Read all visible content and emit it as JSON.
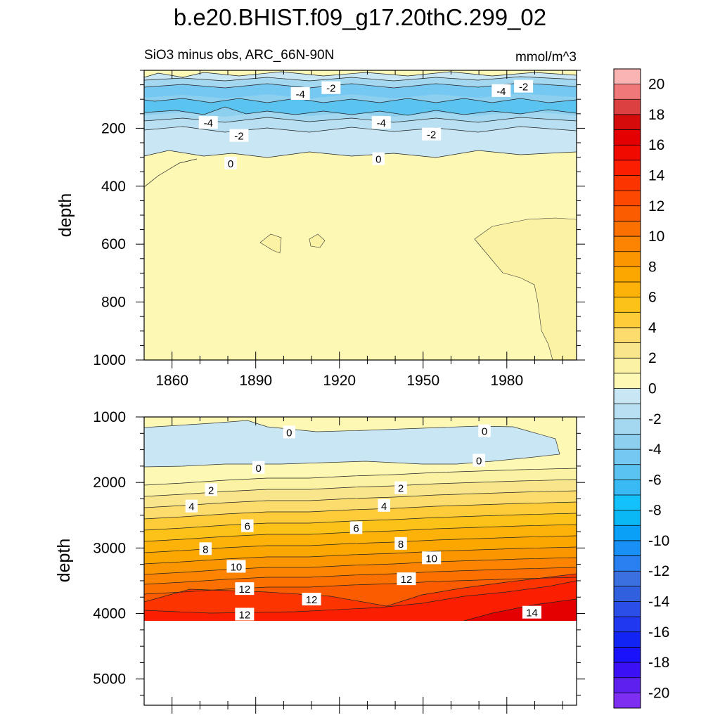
{
  "title": "b.e20.BHIST.f09_g17.20thC.299_02",
  "subtitle_left": "SiO3 minus obs, ARC_66N-90N",
  "subtitle_right": "mmol/m^3",
  "chart_data": [
    {
      "type": "contour",
      "panel": "upper",
      "ylabel": "depth",
      "xlim": [
        1850,
        2005
      ],
      "ylim": [
        1000,
        0
      ],
      "x_ticks": [
        1860,
        1890,
        1920,
        1950,
        1980
      ],
      "x_tick_labels": [
        "1860",
        "1890",
        "1920",
        "1950",
        "1980"
      ],
      "y_ticks": [
        200,
        400,
        600,
        800,
        1000
      ],
      "y_tick_labels": [
        "200",
        "400",
        "600",
        "800",
        "1000"
      ],
      "contour_labels": [
        {
          "text": "-2",
          "x": 1917,
          "depth": 60
        },
        {
          "text": "-4",
          "x": 1906,
          "depth": 80
        },
        {
          "text": "-4",
          "x": 1978,
          "depth": 70
        },
        {
          "text": "-2",
          "x": 1986,
          "depth": 55
        },
        {
          "text": "-4",
          "x": 1873,
          "depth": 180
        },
        {
          "text": "-2",
          "x": 1884,
          "depth": 225
        },
        {
          "text": "-4",
          "x": 1935,
          "depth": 180
        },
        {
          "text": "-2",
          "x": 1953,
          "depth": 220
        },
        {
          "text": "0",
          "x": 1881,
          "depth": 320
        },
        {
          "text": "0",
          "x": 1934,
          "depth": 305
        }
      ]
    },
    {
      "type": "contour",
      "panel": "lower",
      "ylabel": "depth",
      "xlim": [
        1850,
        2005
      ],
      "ylim": [
        5400,
        1000
      ],
      "y_ticks": [
        1000,
        2000,
        3000,
        4000,
        5000
      ],
      "y_tick_labels": [
        "1000",
        "2000",
        "3000",
        "4000",
        "5000"
      ],
      "bottom_depth": 4130,
      "contour_labels": [
        {
          "text": "0",
          "x": 1902,
          "depth": 1230
        },
        {
          "text": "0",
          "x": 1972,
          "depth": 1210
        },
        {
          "text": "0",
          "x": 1891,
          "depth": 1770
        },
        {
          "text": "0",
          "x": 1970,
          "depth": 1660
        },
        {
          "text": "2",
          "x": 1874,
          "depth": 2110
        },
        {
          "text": "2",
          "x": 1942,
          "depth": 2080
        },
        {
          "text": "4",
          "x": 1867,
          "depth": 2360
        },
        {
          "text": "4",
          "x": 1936,
          "depth": 2350
        },
        {
          "text": "6",
          "x": 1887,
          "depth": 2660
        },
        {
          "text": "6",
          "x": 1926,
          "depth": 2690
        },
        {
          "text": "8",
          "x": 1872,
          "depth": 3010
        },
        {
          "text": "8",
          "x": 1942,
          "depth": 2930
        },
        {
          "text": "10",
          "x": 1883,
          "depth": 3280
        },
        {
          "text": "10",
          "x": 1953,
          "depth": 3150
        },
        {
          "text": "12",
          "x": 1886,
          "depth": 3620
        },
        {
          "text": "12",
          "x": 1910,
          "depth": 3780
        },
        {
          "text": "12",
          "x": 1944,
          "depth": 3470
        },
        {
          "text": "12",
          "x": 1886,
          "depth": 4010
        },
        {
          "text": "14",
          "x": 1989,
          "depth": 3980
        }
      ]
    }
  ],
  "colorbar": {
    "levels": [
      -21,
      -20,
      -19,
      -18,
      -17,
      -16,
      -15,
      -14,
      -13,
      -12,
      -11,
      -10,
      -9,
      -8,
      -7,
      -6,
      -5,
      -4,
      -3,
      -2,
      -1,
      0,
      1,
      2,
      3,
      4,
      5,
      6,
      7,
      8,
      9,
      10,
      11,
      12,
      13,
      14,
      15,
      16,
      17,
      18,
      19,
      20,
      21
    ],
    "colors": [
      "#7d2ef0",
      "#5d20ee",
      "#3b10f5",
      "#1a12fb",
      "#1224f3",
      "#2038f0",
      "#2b4de8",
      "#3060dd",
      "#3a70e0",
      "#2a80f0",
      "#1890f5",
      "#0aa0f8",
      "#0ab8f5",
      "#14c2fb",
      "#3abaf5",
      "#5ac3f0",
      "#75c8f2",
      "#8ccfee",
      "#a4d8f0",
      "#b8e0f2",
      "#c8e6f4",
      "#fdf9b4",
      "#fbf2a4",
      "#f9e68c",
      "#fbdc6c",
      "#fdcc38",
      "#fcc218",
      "#fdb20a",
      "#fca600",
      "#fc9600",
      "#fc8400",
      "#fc7000",
      "#fc5c00",
      "#fc4800",
      "#fc3400",
      "#fc1e00",
      "#f00a00",
      "#e40000",
      "#d50a0a",
      "#dd4040",
      "#f07878",
      "#fbb4b4"
    ],
    "tick_labels": [
      "-20",
      "-18",
      "-16",
      "-14",
      "-12",
      "-10",
      "-8",
      "-6",
      "-4",
      "-2",
      "0",
      "2",
      "4",
      "6",
      "8",
      "10",
      "12",
      "14",
      "16",
      "18",
      "20"
    ]
  }
}
